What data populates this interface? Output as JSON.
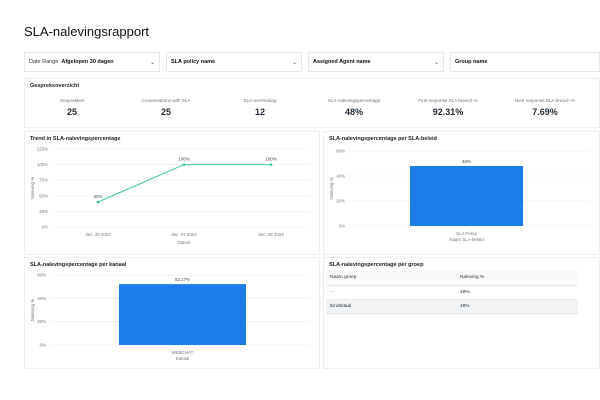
{
  "page": {
    "title": "SLA-nalevingsrapport"
  },
  "filters": {
    "date_range_label": "Date Range",
    "date_range_value": "Afgelopen 30 dagen",
    "sla_policy_placeholder": "SLA policy name",
    "agent_placeholder": "Assigned Agent name",
    "group_placeholder": "Group name"
  },
  "summary": {
    "title": "Gespreksoverzicht",
    "kpis": [
      {
        "label": "Gesprekken",
        "value": "25"
      },
      {
        "label": "Conversations with SLA",
        "value": "25"
      },
      {
        "label": "SLA-overtreding",
        "value": "12"
      },
      {
        "label": "SLA-nalevingspercentage",
        "value": "48%"
      },
      {
        "label": "First response SLA breach %",
        "value": "92.31%"
      },
      {
        "label": "Next response SLA breach %",
        "value": "7.69%"
      }
    ]
  },
  "trend_panel": {
    "title": "Trend in SLA-nalevingspercentage"
  },
  "policy_panel": {
    "title": "SLA-nalevingspercentage per SLA-beleid"
  },
  "channel_panel": {
    "title": "SLA-nalevingspercentage per kanaal"
  },
  "group_panel": {
    "title": "SLA-nalevingspercentage per groep",
    "columns": [
      "Naam groep",
      "Naleving %"
    ],
    "rows": [
      [
        "---",
        "48%"
      ],
      [
        "Eindtotaal",
        "48%"
      ]
    ]
  },
  "colors": {
    "line": "#3cc8a0",
    "bar": "#1a7de8"
  },
  "chart_data": [
    {
      "type": "line",
      "title": "Trend in SLA-nalevingspercentage",
      "categories": [
        "dec. 29 2024",
        "dec. 07 2024",
        "dec. 09 2024"
      ],
      "values": [
        40,
        100,
        100
      ],
      "value_labels": [
        "40%",
        "100%",
        "100%"
      ],
      "xlabel": "Datum",
      "ylabel": "Naleving %",
      "yticks": [
        "0%",
        "25%",
        "50%",
        "75%",
        "100%",
        "125%"
      ],
      "ylim": [
        0,
        125
      ],
      "grid": true
    },
    {
      "type": "bar",
      "title": "SLA-nalevingspercentage per SLA-beleid",
      "categories": [
        "SLA Policy"
      ],
      "values": [
        48
      ],
      "value_labels": [
        "48%"
      ],
      "xlabel": "Naam SLA-beleid",
      "ylabel": "Naleving %",
      "yticks": [
        "0%",
        "20%",
        "40%",
        "60%"
      ],
      "ylim": [
        0,
        60
      ],
      "grid": true
    },
    {
      "type": "bar",
      "title": "SLA-nalevingspercentage per kanaal",
      "categories": [
        "WEBCHAT"
      ],
      "values": [
        52.17
      ],
      "value_labels": [
        "52.17%"
      ],
      "xlabel": "Kanaal",
      "ylabel": "Naleving %",
      "yticks": [
        "0%",
        "20%",
        "40%",
        "60%"
      ],
      "ylim": [
        0,
        60
      ],
      "grid": true
    }
  ]
}
